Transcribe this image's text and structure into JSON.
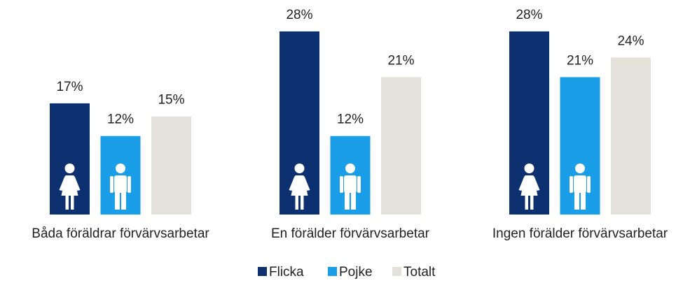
{
  "chart_data": {
    "type": "bar",
    "categories": [
      "Båda föräldrar förvärvsarbetar",
      "En förälder förvärvsarbetar",
      "Ingen förälder förvärvsarbetar"
    ],
    "series": [
      {
        "name": "Flicka",
        "color": "#0d3170",
        "values": [
          17,
          28,
          28
        ],
        "value_labels": [
          "17%",
          "28%",
          "28%"
        ]
      },
      {
        "name": "Pojke",
        "color": "#1a9ee8",
        "values": [
          12,
          12,
          21
        ],
        "value_labels": [
          "12%",
          "12%",
          "21%"
        ]
      },
      {
        "name": "Totalt",
        "color": "#e3e1da",
        "values": [
          15,
          21,
          24
        ],
        "value_labels": [
          "15%",
          "21%",
          "24%"
        ]
      }
    ],
    "legend": "bottom"
  }
}
